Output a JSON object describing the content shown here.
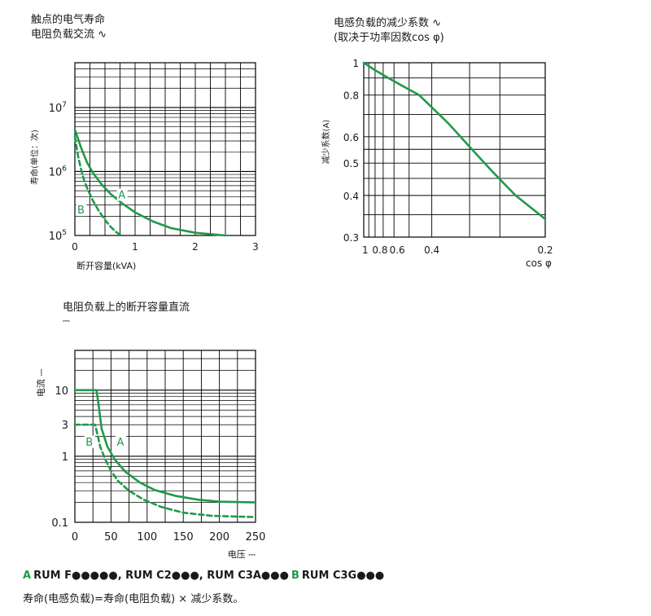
{
  "titles": {
    "chart1_line1": "触点的电气寿命",
    "chart1_line2": "电阻负载交流 ∿",
    "chart2_line1": "电感负载的减少系数 ∿",
    "chart2_line2": "(取决于功率因数cos φ)",
    "chart3_line1": "电阻负载上的断开容量直流",
    "chart3_line2": "⎓"
  },
  "legend": {
    "a_key": "A",
    "a_text": "RUM F●●●●●, RUM C2●●●, RUM C3A●●●",
    "b_key": "B",
    "b_text": "RUM C3G●●●"
  },
  "footnote": "寿命(电感负载)=寿命(电阻负载) × 减少系数。",
  "colors": {
    "curve": "#1f9a4b",
    "grid": "#000000",
    "text": "#1a1a1a"
  },
  "chart_data": [
    {
      "id": "chart1",
      "type": "line",
      "title": "触点的电气寿命 电阻负载交流 ∿",
      "xlabel": "断开容量(kVA)",
      "ylabel": "寿命(单位：次)",
      "xscale": "linear",
      "yscale": "log",
      "xlim": [
        0,
        3
      ],
      "ylim": [
        100000,
        50000000
      ],
      "xticks": [
        0,
        1,
        2,
        3
      ],
      "yticks": [
        {
          "base": "10",
          "exp": "5",
          "value": 100000
        },
        {
          "base": "10",
          "exp": "6",
          "value": 1000000
        },
        {
          "base": "10",
          "exp": "7",
          "value": 10000000
        }
      ],
      "grid": true,
      "series": [
        {
          "name": "A",
          "style": "solid",
          "x": [
            0,
            0.1,
            0.2,
            0.3,
            0.45,
            0.6,
            0.8,
            1.0,
            1.3,
            1.6,
            2.0,
            2.5
          ],
          "y": [
            4500000,
            2400000,
            1400000,
            950000,
            620000,
            440000,
            310000,
            230000,
            165000,
            130000,
            110000,
            100000
          ]
        },
        {
          "name": "B",
          "style": "dashed",
          "x": [
            0,
            0.05,
            0.1,
            0.15,
            0.2,
            0.3,
            0.4,
            0.5,
            0.6,
            0.7,
            0.78
          ],
          "y": [
            3500000,
            1800000,
            1100000,
            750000,
            560000,
            350000,
            240000,
            175000,
            135000,
            110000,
            100000
          ]
        }
      ],
      "annotations": [
        {
          "text": "A",
          "x": 0.78,
          "y": 380000
        },
        {
          "text": "B",
          "x": 0.1,
          "y": 220000
        }
      ]
    },
    {
      "id": "chart2",
      "type": "line",
      "title": "电感负载的减少系数 ∿ (取决于功率因数cos φ)",
      "xlabel": "cos φ",
      "ylabel": "减少系数(A)",
      "xscale": "reciprocal",
      "yscale": "log",
      "xlim": [
        1,
        0.2
      ],
      "ylim": [
        0.3,
        1
      ],
      "xticks": [
        1,
        0.8,
        0.6,
        0.4,
        0.2
      ],
      "yticks": [
        0.3,
        0.4,
        0.5,
        0.6,
        0.8,
        1
      ],
      "grid": true,
      "series": [
        {
          "name": "",
          "style": "solid",
          "x": [
            1,
            0.8,
            0.6,
            0.45,
            0.35,
            0.3,
            0.26,
            0.23,
            0.2
          ],
          "y": [
            1,
            0.95,
            0.88,
            0.8,
            0.66,
            0.56,
            0.47,
            0.4,
            0.34
          ]
        }
      ]
    },
    {
      "id": "chart3",
      "type": "line",
      "title": "电阻负载上的断开容量直流 ⎓",
      "xlabel": "电压 ⎓",
      "ylabel": "电流 ⎓",
      "xscale": "linear",
      "yscale": "log",
      "xlim": [
        0,
        250
      ],
      "ylim": [
        0.1,
        40
      ],
      "xticks": [
        0,
        50,
        100,
        150,
        200,
        250
      ],
      "yticks": [
        0.1,
        1,
        3,
        10
      ],
      "grid": true,
      "series": [
        {
          "name": "A",
          "style": "solid",
          "x": [
            0,
            30,
            33,
            37,
            45,
            55,
            70,
            90,
            110,
            140,
            170,
            200,
            250
          ],
          "y": [
            10,
            10,
            5.8,
            2.6,
            1.4,
            0.9,
            0.58,
            0.4,
            0.31,
            0.25,
            0.22,
            0.205,
            0.2
          ]
        },
        {
          "name": "B",
          "style": "dashed",
          "x": [
            0,
            28,
            31,
            35,
            42,
            50,
            60,
            75,
            95,
            120,
            150,
            190,
            250
          ],
          "y": [
            3,
            3,
            2.2,
            1.4,
            0.9,
            0.6,
            0.42,
            0.3,
            0.22,
            0.17,
            0.14,
            0.125,
            0.12
          ]
        }
      ],
      "annotations": [
        {
          "text": "A",
          "x": 63,
          "y": 1.45
        },
        {
          "text": "B",
          "x": 20,
          "y": 1.45
        }
      ]
    }
  ]
}
